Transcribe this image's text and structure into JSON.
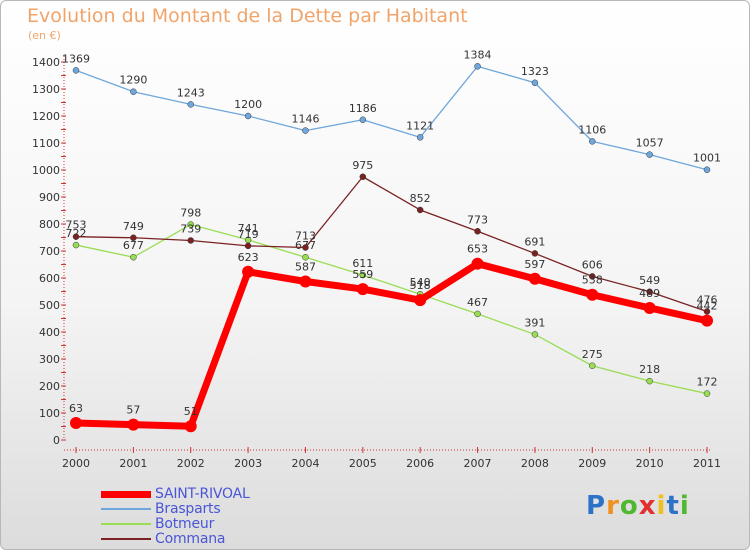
{
  "chart_data": {
    "type": "line",
    "title": "Evolution du Montant de la Dette par Habitant",
    "subtitle": "(en €)",
    "x": [
      "2000",
      "2001",
      "2002",
      "2003",
      "2004",
      "2005",
      "2006",
      "2007",
      "2008",
      "2009",
      "2010",
      "2011"
    ],
    "ylim": [
      0,
      1400
    ],
    "yticks": [
      "0",
      "100",
      "200",
      "300",
      "400",
      "500",
      "600",
      "700",
      "800",
      "900",
      "1000",
      "1100",
      "1200",
      "1300",
      "1400"
    ],
    "grid": false,
    "legend_position": "bottom-left",
    "series": [
      {
        "name": "SAINT-RIVOAL",
        "color": "#ff0000",
        "values": [
          63,
          57,
          51,
          623,
          587,
          559,
          518,
          653,
          597,
          538,
          489,
          442
        ]
      },
      {
        "name": "Brasparts",
        "color": "#6fa7dc",
        "values": [
          1369,
          1290,
          1243,
          1200,
          1146,
          1186,
          1121,
          1384,
          1323,
          1106,
          1057,
          1001
        ]
      },
      {
        "name": "Botmeur",
        "color": "#99dd55",
        "values": [
          722,
          677,
          798,
          741,
          677,
          611,
          540,
          467,
          391,
          275,
          218,
          172
        ]
      },
      {
        "name": "Commana",
        "color": "#7a2222",
        "values": [
          753,
          749,
          739,
          719,
          713,
          975,
          852,
          773,
          691,
          606,
          549,
          476
        ]
      }
    ]
  },
  "logo": {
    "letters": [
      "P",
      "r",
      "o",
      "x",
      "i",
      "t",
      "i"
    ],
    "colors": [
      "#2c73c8",
      "#f09020",
      "#50b830",
      "#e03030",
      "#f0c020",
      "#2c73c8",
      "#50b830"
    ]
  }
}
